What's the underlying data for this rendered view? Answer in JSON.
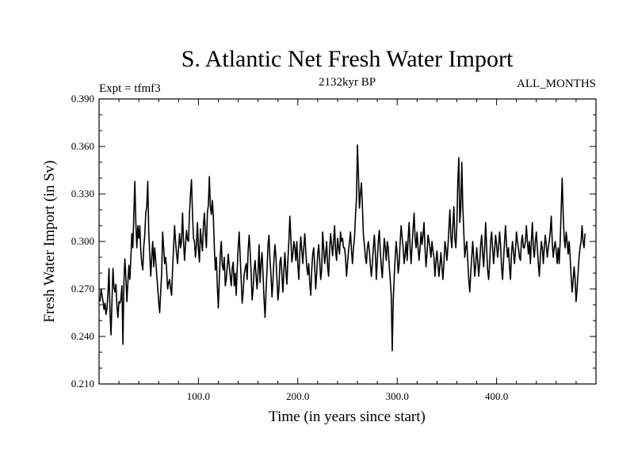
{
  "chart_data": {
    "type": "line",
    "title": "S. Atlantic Net Fresh Water Import",
    "subtitle_left": "Expt = tfmf3",
    "subtitle_center": "2132kyr BP",
    "subtitle_right": "ALL_MONTHS",
    "xlabel": "Time (in years since start)",
    "ylabel": "Fresh Water Import (in Sv)",
    "xlim": [
      0,
      500
    ],
    "ylim": [
      0.21,
      0.39
    ],
    "xticks": [
      100,
      200,
      300,
      400
    ],
    "xtick_labels": [
      "100.0",
      "200.0",
      "300.0",
      "400.0"
    ],
    "yticks": [
      0.21,
      0.24,
      0.27,
      0.3,
      0.33,
      0.36,
      0.39
    ],
    "ytick_labels": [
      "0.210",
      "0.240",
      "0.270",
      "0.300",
      "0.330",
      "0.360",
      "0.390"
    ],
    "grid": false,
    "series": [
      {
        "name": "Fresh Water Import",
        "x_start": 1,
        "x_step": 1,
        "values": [
          0.262,
          0.27,
          0.266,
          0.262,
          0.257,
          0.261,
          0.254,
          0.258,
          0.268,
          0.283,
          0.256,
          0.241,
          0.262,
          0.283,
          0.271,
          0.268,
          0.273,
          0.259,
          0.252,
          0.262,
          0.261,
          0.264,
          0.272,
          0.235,
          0.274,
          0.289,
          0.277,
          0.262,
          0.274,
          0.285,
          0.276,
          0.29,
          0.305,
          0.296,
          0.317,
          0.338,
          0.312,
          0.296,
          0.31,
          0.302,
          0.31,
          0.294,
          0.286,
          0.282,
          0.297,
          0.304,
          0.318,
          0.322,
          0.338,
          0.306,
          0.292,
          0.278,
          0.29,
          0.3,
          0.284,
          0.296,
          0.288,
          0.279,
          0.271,
          0.262,
          0.255,
          0.268,
          0.28,
          0.306,
          0.296,
          0.286,
          0.29,
          0.282,
          0.27,
          0.274,
          0.276,
          0.27,
          0.266,
          0.283,
          0.296,
          0.31,
          0.3,
          0.292,
          0.286,
          0.296,
          0.305,
          0.296,
          0.3,
          0.318,
          0.3,
          0.288,
          0.298,
          0.307,
          0.301,
          0.3,
          0.318,
          0.33,
          0.339,
          0.318,
          0.302,
          0.3,
          0.29,
          0.298,
          0.312,
          0.295,
          0.287,
          0.308,
          0.3,
          0.294,
          0.31,
          0.318,
          0.305,
          0.296,
          0.318,
          0.323,
          0.341,
          0.322,
          0.317,
          0.326,
          0.316,
          0.296,
          0.282,
          0.29,
          0.272,
          0.258,
          0.276,
          0.292,
          0.3,
          0.285,
          0.282,
          0.29,
          0.272,
          0.276,
          0.284,
          0.292,
          0.285,
          0.278,
          0.272,
          0.283,
          0.287,
          0.272,
          0.28,
          0.266,
          0.283,
          0.296,
          0.306,
          0.29,
          0.276,
          0.261,
          0.268,
          0.279,
          0.283,
          0.286,
          0.276,
          0.294,
          0.304,
          0.294,
          0.281,
          0.263,
          0.27,
          0.282,
          0.288,
          0.278,
          0.27,
          0.281,
          0.298,
          0.274,
          0.286,
          0.293,
          0.279,
          0.264,
          0.252,
          0.268,
          0.282,
          0.298,
          0.304,
          0.288,
          0.279,
          0.265,
          0.275,
          0.289,
          0.298,
          0.29,
          0.276,
          0.263,
          0.27,
          0.287,
          0.29,
          0.279,
          0.268,
          0.282,
          0.293,
          0.281,
          0.273,
          0.288,
          0.3,
          0.316,
          0.302,
          0.287,
          0.292,
          0.3,
          0.296,
          0.288,
          0.3,
          0.285,
          0.276,
          0.293,
          0.303,
          0.294,
          0.286,
          0.296,
          0.305,
          0.294,
          0.284,
          0.279,
          0.286,
          0.274,
          0.266,
          0.282,
          0.292,
          0.296,
          0.284,
          0.27,
          0.28,
          0.292,
          0.298,
          0.288,
          0.276,
          0.282,
          0.306,
          0.296,
          0.286,
          0.292,
          0.3,
          0.284,
          0.278,
          0.295,
          0.305,
          0.298,
          0.291,
          0.3,
          0.31,
          0.294,
          0.288,
          0.302,
          0.296,
          0.292,
          0.306,
          0.3,
          0.302,
          0.296,
          0.296,
          0.29,
          0.278,
          0.286,
          0.294,
          0.3,
          0.306,
          0.294,
          0.286,
          0.296,
          0.302,
          0.316,
          0.327,
          0.361,
          0.342,
          0.321,
          0.33,
          0.337,
          0.322,
          0.304,
          0.298,
          0.29,
          0.286,
          0.296,
          0.3,
          0.294,
          0.285,
          0.278,
          0.286,
          0.296,
          0.304,
          0.293,
          0.276,
          0.288,
          0.3,
          0.307,
          0.294,
          0.284,
          0.277,
          0.29,
          0.302,
          0.296,
          0.288,
          0.3,
          0.296,
          0.284,
          0.276,
          0.266,
          0.231,
          0.262,
          0.278,
          0.29,
          0.3,
          0.292,
          0.28,
          0.286,
          0.3,
          0.31,
          0.302,
          0.296,
          0.286,
          0.292,
          0.3,
          0.288,
          0.302,
          0.312,
          0.296,
          0.286,
          0.298,
          0.308,
          0.318,
          0.302,
          0.296,
          0.306,
          0.296,
          0.288,
          0.296,
          0.306,
          0.298,
          0.304,
          0.312,
          0.296,
          0.284,
          0.292,
          0.304,
          0.3,
          0.296,
          0.29,
          0.3,
          0.294,
          0.29,
          0.278,
          0.287,
          0.294,
          0.286,
          0.278,
          0.285,
          0.293,
          0.284,
          0.276,
          0.286,
          0.3,
          0.296,
          0.288,
          0.296,
          0.308,
          0.32,
          0.302,
          0.296,
          0.31,
          0.322,
          0.302,
          0.296,
          0.31,
          0.338,
          0.353,
          0.312,
          0.321,
          0.35,
          0.322,
          0.306,
          0.29,
          0.296,
          0.3,
          0.288,
          0.276,
          0.268,
          0.28,
          0.29,
          0.3,
          0.29,
          0.278,
          0.285,
          0.296,
          0.288,
          0.278,
          0.286,
          0.298,
          0.304,
          0.292,
          0.284,
          0.296,
          0.312,
          0.296,
          0.282,
          0.276,
          0.286,
          0.3,
          0.306,
          0.296,
          0.286,
          0.294,
          0.304,
          0.298,
          0.29,
          0.296,
          0.306,
          0.298,
          0.284,
          0.276,
          0.288,
          0.3,
          0.31,
          0.298,
          0.29,
          0.296,
          0.284,
          0.276,
          0.292,
          0.3,
          0.294,
          0.286,
          0.294,
          0.306,
          0.3,
          0.296,
          0.29,
          0.288,
          0.3,
          0.304,
          0.296,
          0.296,
          0.3,
          0.31,
          0.3,
          0.292,
          0.3,
          0.286,
          0.3,
          0.312,
          0.296,
          0.29,
          0.3,
          0.306,
          0.296,
          0.286,
          0.278,
          0.29,
          0.3,
          0.296,
          0.286,
          0.296,
          0.304,
          0.298,
          0.29,
          0.296,
          0.3,
          0.306,
          0.316,
          0.3,
          0.29,
          0.296,
          0.3,
          0.294,
          0.286,
          0.296,
          0.286,
          0.3,
          0.32,
          0.34,
          0.318,
          0.302,
          0.296,
          0.306,
          0.3,
          0.292,
          0.3,
          0.29,
          0.278,
          0.268,
          0.275,
          0.284,
          0.276,
          0.262,
          0.27,
          0.28,
          0.29,
          0.296,
          0.3,
          0.31,
          0.3,
          0.296,
          0.305
        ]
      }
    ]
  }
}
